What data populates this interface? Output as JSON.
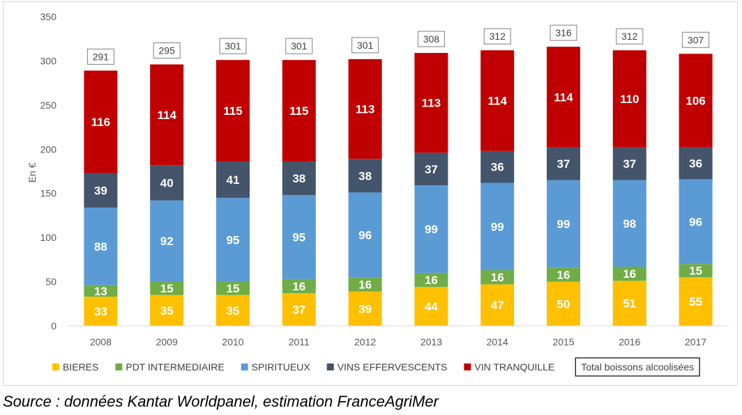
{
  "chart_data": {
    "type": "bar",
    "stacked": true,
    "ylabel": "En €",
    "ylim": [
      0,
      350
    ],
    "yticks": [
      0,
      50,
      100,
      150,
      200,
      250,
      300,
      350
    ],
    "grid": false,
    "legend_position": "bottom",
    "categories": [
      "2008",
      "2009",
      "2010",
      "2011",
      "2012",
      "2013",
      "2014",
      "2015",
      "2016",
      "2017"
    ],
    "series": [
      {
        "name": "BIERES",
        "color": "#ffc000",
        "values": [
          33,
          35,
          35,
          37,
          39,
          44,
          47,
          50,
          51,
          55
        ]
      },
      {
        "name": "PDT INTERMEDIAIRE",
        "color": "#70ad47",
        "values": [
          13,
          15,
          15,
          16,
          16,
          16,
          16,
          16,
          16,
          15
        ]
      },
      {
        "name": "SPIRITUEUX",
        "color": "#5b9bd5",
        "values": [
          88,
          92,
          95,
          95,
          96,
          99,
          99,
          99,
          98,
          96
        ]
      },
      {
        "name": "VINS EFFERVESCENTS",
        "color": "#44546a",
        "values": [
          39,
          40,
          41,
          38,
          38,
          37,
          36,
          37,
          37,
          36
        ]
      },
      {
        "name": "VIN TRANQUILLE",
        "color": "#c00000",
        "values": [
          116,
          114,
          115,
          115,
          113,
          113,
          114,
          114,
          110,
          106
        ]
      }
    ],
    "totals": {
      "name": "Total boissons alcoolisées",
      "values": [
        291,
        295,
        301,
        301,
        301,
        308,
        312,
        316,
        312,
        307
      ]
    }
  },
  "source": "Source : données Kantar Worldpanel, estimation FranceAgriMer"
}
